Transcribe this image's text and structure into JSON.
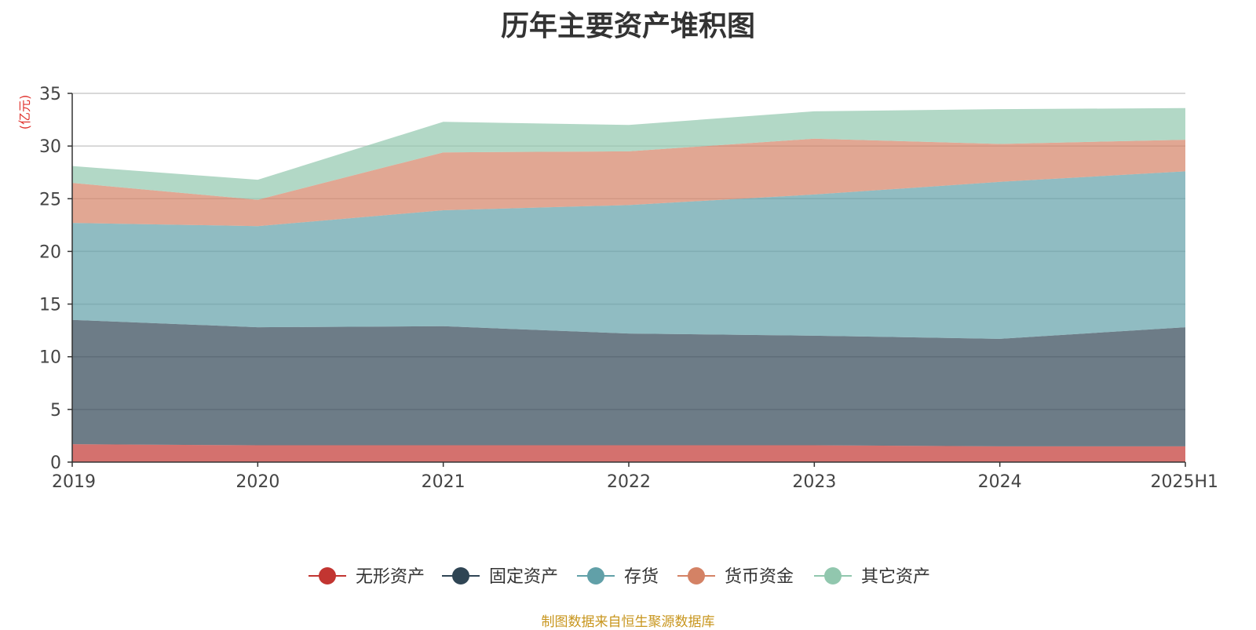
{
  "chart_data": {
    "type": "area",
    "title": "历年主要资产堆积图",
    "ylabel": "(亿元)",
    "xlabel": "",
    "categories": [
      "2019",
      "2020",
      "2021",
      "2022",
      "2023",
      "2024",
      "2025H1"
    ],
    "ylim": [
      0,
      35
    ],
    "yticks": [
      0,
      5,
      10,
      15,
      20,
      25,
      30,
      35
    ],
    "stacked": true,
    "grid": true,
    "legend_position": "bottom",
    "series": [
      {
        "name": "无形资产",
        "color": "#c23531",
        "values": [
          1.7,
          1.6,
          1.6,
          1.6,
          1.6,
          1.5,
          1.5
        ]
      },
      {
        "name": "固定资产",
        "color": "#2f4554",
        "values": [
          11.8,
          11.2,
          11.3,
          10.6,
          10.4,
          10.2,
          11.3
        ]
      },
      {
        "name": "存货",
        "color": "#61a0a8",
        "values": [
          9.2,
          9.6,
          11.0,
          12.2,
          13.4,
          14.9,
          14.8
        ]
      },
      {
        "name": "货币资金",
        "color": "#d48265",
        "values": [
          3.8,
          2.5,
          5.5,
          5.1,
          5.3,
          3.6,
          3.0
        ]
      },
      {
        "name": "其它资产",
        "color": "#91c7ae",
        "values": [
          1.6,
          1.9,
          2.9,
          2.5,
          2.6,
          3.3,
          3.0
        ]
      }
    ]
  },
  "footer": {
    "source": "制图数据来自恒生聚源数据库"
  }
}
